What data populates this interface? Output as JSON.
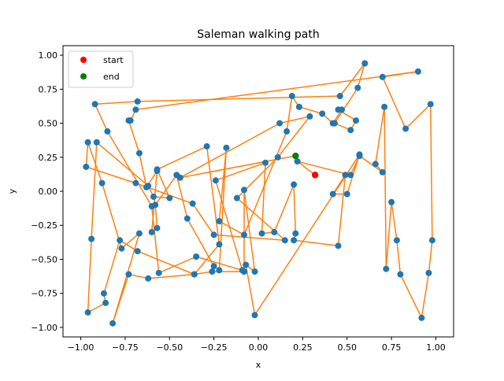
{
  "chart_data": {
    "type": "scatter",
    "title": "Saleman walking path",
    "xlabel": "x",
    "ylabel": "y",
    "xlim": [
      -1.1,
      1.1
    ],
    "ylim": [
      -1.07,
      1.07
    ],
    "xticks": [
      -1.0,
      -0.75,
      -0.5,
      -0.25,
      0.0,
      0.25,
      0.5,
      0.75,
      1.0
    ],
    "yticks": [
      -1.0,
      -0.75,
      -0.5,
      -0.25,
      0.0,
      0.25,
      0.5,
      0.75,
      1.0
    ],
    "xtick_labels": [
      "−1.00",
      "−0.75",
      "−0.50",
      "−0.25",
      "0.00",
      "0.25",
      "0.50",
      "0.75",
      "1.00"
    ],
    "ytick_labels": [
      "−1.00",
      "−0.75",
      "−0.50",
      "−0.25",
      "0.00",
      "0.25",
      "0.50",
      "0.75",
      "1.00"
    ],
    "grid": false,
    "legend_position": "top-left",
    "legend": [
      {
        "label": "start",
        "color": "#ff0000"
      },
      {
        "label": "end",
        "color": "#008000"
      }
    ],
    "colors": {
      "city": "#1f77b4",
      "path": "#ff7f0e",
      "start": "#ff0000",
      "end": "#008000"
    },
    "start": [
      0.32,
      0.12
    ],
    "end": [
      0.21,
      0.26
    ],
    "path": [
      [
        0.32,
        0.12
      ],
      [
        0.22,
        0.22
      ],
      [
        0.52,
        0.12
      ],
      [
        0.57,
        0.26
      ],
      [
        0.7,
        0.14
      ],
      [
        0.66,
        0.2
      ],
      [
        0.71,
        0.62
      ],
      [
        0.72,
        -0.57
      ],
      [
        0.75,
        -0.08
      ],
      [
        0.78,
        -0.36
      ],
      [
        0.8,
        -0.61
      ],
      [
        0.92,
        -0.93
      ],
      [
        0.96,
        -0.6
      ],
      [
        0.98,
        -0.36
      ],
      [
        0.97,
        0.64
      ],
      [
        0.83,
        0.46
      ],
      [
        0.7,
        0.84
      ],
      [
        0.9,
        0.88
      ],
      [
        -0.69,
        0.6
      ],
      [
        -0.72,
        0.52
      ],
      [
        -0.73,
        0.52
      ],
      [
        -0.67,
        0.28
      ],
      [
        -0.63,
        0.03
      ],
      [
        -0.57,
        0.15
      ],
      [
        -0.6,
        -0.3
      ],
      [
        -0.57,
        -0.27
      ],
      [
        -0.58,
        -0.1
      ],
      [
        -0.46,
        0.12
      ],
      [
        -0.4,
        -0.2
      ],
      [
        -0.25,
        -0.55
      ],
      [
        -0.22,
        -0.58
      ],
      [
        -0.18,
        0.32
      ],
      [
        -0.22,
        -0.22
      ],
      [
        -0.08,
        -0.32
      ],
      [
        0.16,
        0.44
      ],
      [
        0.19,
        0.7
      ],
      [
        0.23,
        0.62
      ],
      [
        0.36,
        0.57
      ],
      [
        0.42,
        0.5
      ],
      [
        0.47,
        0.6
      ],
      [
        0.45,
        0.6
      ],
      [
        0.55,
        0.52
      ],
      [
        0.52,
        0.45
      ],
      [
        0.43,
        0.5
      ],
      [
        0.56,
        0.76
      ],
      [
        0.6,
        0.94
      ],
      [
        0.46,
        0.7
      ],
      [
        -0.68,
        0.66
      ],
      [
        -0.92,
        0.64
      ],
      [
        -0.85,
        0.44
      ],
      [
        -0.6,
        -0.11
      ],
      [
        -0.56,
        -0.6
      ],
      [
        -0.35,
        -0.48
      ],
      [
        -0.09,
        -0.58
      ],
      [
        -0.24,
        0.08
      ],
      [
        0.04,
        0.21
      ],
      [
        0.02,
        -0.31
      ],
      [
        0.09,
        -0.3
      ],
      [
        0.2,
        0.05
      ],
      [
        0.21,
        -0.31
      ],
      [
        0.2,
        -0.36
      ],
      [
        0.45,
        -0.4
      ],
      [
        0.49,
        0.12
      ],
      [
        0.42,
        -0.02
      ],
      [
        0.5,
        -0.02
      ],
      [
        0.57,
        0.27
      ],
      [
        -0.02,
        -0.91
      ],
      [
        -0.07,
        -0.54
      ],
      [
        -0.02,
        -0.59
      ],
      [
        -0.08,
        0.01
      ],
      [
        -0.08,
        -0.59
      ],
      [
        -0.26,
        -0.59
      ],
      [
        -0.36,
        -0.61
      ],
      [
        -0.68,
        -0.44
      ],
      [
        -0.78,
        -0.36
      ],
      [
        -0.87,
        -0.75
      ],
      [
        -0.86,
        -0.82
      ],
      [
        -0.96,
        -0.89
      ],
      [
        -0.94,
        -0.35
      ],
      [
        -0.91,
        0.36
      ],
      [
        -0.62,
        0.04
      ],
      [
        -0.59,
        -0.04
      ],
      [
        -0.5,
        -0.05
      ],
      [
        -0.57,
        0.16
      ],
      [
        -0.29,
        0.33
      ],
      [
        -0.22,
        -0.39
      ],
      [
        -0.36,
        -0.61
      ],
      [
        -0.62,
        -0.64
      ],
      [
        -0.73,
        -0.61
      ],
      [
        -0.82,
        -0.97
      ],
      [
        -0.67,
        -0.31
      ],
      [
        -0.77,
        -0.42
      ],
      [
        -0.88,
        0.06
      ],
      [
        -0.96,
        0.36
      ],
      [
        -0.97,
        0.18
      ],
      [
        -0.69,
        0.06
      ],
      [
        -0.37,
        -0.09
      ],
      [
        -0.25,
        -0.32
      ],
      [
        0.15,
        -0.36
      ],
      [
        -0.12,
        -0.05
      ],
      [
        0.11,
        0.25
      ],
      [
        0.29,
        0.55
      ],
      [
        0.12,
        0.5
      ],
      [
        -0.44,
        0.1
      ],
      [
        0.21,
        0.26
      ]
    ]
  }
}
